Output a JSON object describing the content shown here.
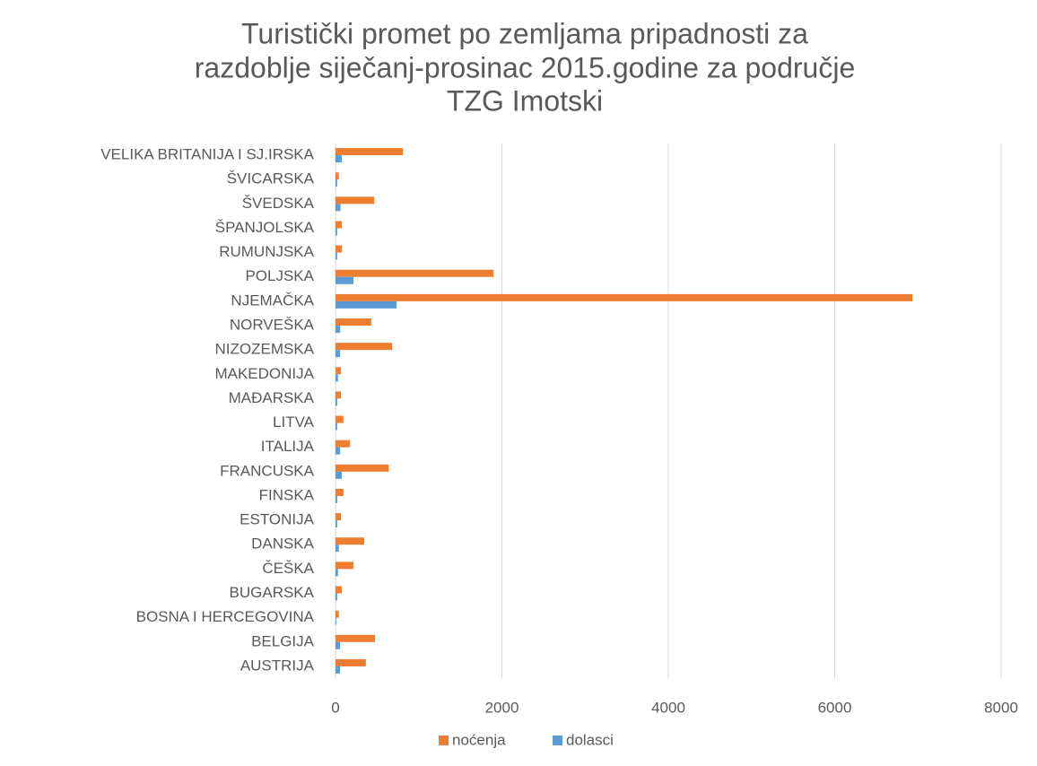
{
  "chart_data": {
    "type": "barh",
    "title": [
      "Turistički promet po zemljama pripadnosti za",
      "razdoblje siječanj-prosinac 2015.godine za područje",
      "TZG Imotski"
    ],
    "categories": [
      "AUSTRIJA",
      "BELGIJA",
      "BOSNA I HERCEGOVINA",
      "BUGARSKA",
      "ČEŠKA",
      "DANSKA",
      "ESTONIJA",
      "FINSKA",
      "FRANCUSKA",
      "ITALIJA",
      "LITVA",
      "MAĐARSKA",
      "MAKEDONIJA",
      "NIZOZEMSKA",
      "NORVEŠKA",
      "NJEMAČKA",
      "POLJSKA",
      "RUMUNJSKA",
      "ŠPANJOLSKA",
      "ŠVEDSKA",
      "ŠVICARSKA",
      "VELIKA BRITANIJA I SJ.IRSKA"
    ],
    "series": [
      {
        "name": "noćenja",
        "color": "#ed7d31",
        "values": [
          365,
          475,
          40,
          75,
          215,
          345,
          65,
          95,
          640,
          175,
          95,
          65,
          65,
          680,
          430,
          6935,
          1900,
          75,
          75,
          465,
          40,
          810
        ]
      },
      {
        "name": "dolasci",
        "color": "#5b9bd5",
        "values": [
          55,
          55,
          10,
          20,
          30,
          40,
          20,
          20,
          75,
          55,
          20,
          20,
          30,
          55,
          55,
          735,
          215,
          20,
          20,
          60,
          20,
          75
        ]
      }
    ],
    "xlim": [
      0,
      8000
    ],
    "xticks": [
      0,
      2000,
      4000,
      6000,
      8000
    ],
    "grid": true,
    "legend": "bottom"
  }
}
